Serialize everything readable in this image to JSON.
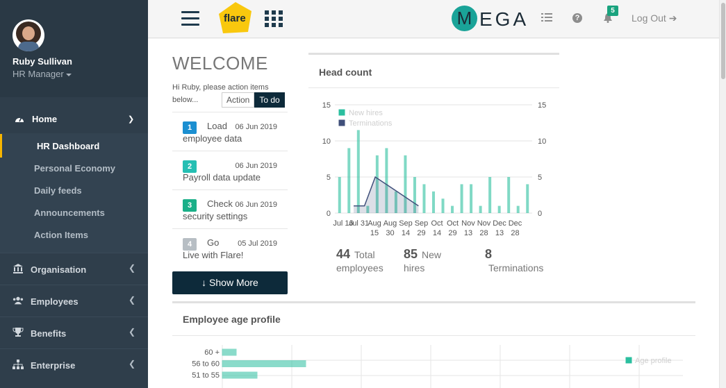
{
  "user": {
    "name": "Ruby Sullivan",
    "role": "HR Manager"
  },
  "nav": {
    "home": "Home",
    "home_items": [
      {
        "label": "HR Dashboard"
      },
      {
        "label": "Personal Economy"
      },
      {
        "label": "Daily feeds"
      },
      {
        "label": "Announcements"
      },
      {
        "label": "Action Items"
      }
    ],
    "groups": [
      {
        "label": "Organisation"
      },
      {
        "label": "Employees"
      },
      {
        "label": "Benefits"
      },
      {
        "label": "Enterprise"
      }
    ]
  },
  "topbar": {
    "brand_logo": "flare",
    "mega_logo_first": "M",
    "mega_logo_rest": "EGA",
    "notification_count": "5",
    "logout_label": "Log Out"
  },
  "welcome": {
    "title": "WELCOME",
    "message": "Hi Ruby, please action items below...",
    "toggle_action": "Action",
    "toggle_todo": "To do",
    "show_more": "Show More"
  },
  "todos": [
    {
      "num": "1",
      "title": "Load",
      "date": "06 Jun 2019",
      "sub": "employee data",
      "color": "#1b8fd1"
    },
    {
      "num": "2",
      "title": "",
      "date": "06 Jun 2019",
      "sub": "Payroll data update",
      "color": "#25bfb3"
    },
    {
      "num": "3",
      "title": "Check",
      "date": "06 Jun 2019",
      "sub": "security settings",
      "color": "#1aaf88"
    },
    {
      "num": "4",
      "title": "Go",
      "date": "05 Jul 2019",
      "sub": "Live with Flare!",
      "color": "#b7bec4"
    }
  ],
  "headcount": {
    "title": "Head count",
    "stats": [
      {
        "value": "44",
        "label1": "Total",
        "label2": "employees"
      },
      {
        "value": "85",
        "label1": "New",
        "label2": "hires"
      },
      {
        "value": "8",
        "label1": "",
        "label2": "Terminations"
      }
    ]
  },
  "age_profile": {
    "title": "Employee age profile"
  },
  "chart_data": [
    {
      "type": "bar",
      "legend": [
        "New hires",
        "Terminations"
      ],
      "x_ticks": [
        [
          "Jul 16",
          ""
        ],
        [
          "Jul 31",
          ""
        ],
        [
          "Aug",
          "15"
        ],
        [
          "Aug",
          "30"
        ],
        [
          "Sep",
          "14"
        ],
        [
          "Sep",
          "29"
        ],
        [
          "Oct",
          "14"
        ],
        [
          "Oct",
          "29"
        ],
        [
          "Nov",
          "13"
        ],
        [
          "Nov",
          "28"
        ],
        [
          "Dec",
          "13"
        ],
        [
          "Dec",
          "28"
        ]
      ],
      "ylim": [
        0,
        15
      ],
      "yticks": [
        0,
        5,
        10,
        15
      ],
      "series": [
        {
          "name": "New hires",
          "values": [
            5,
            9,
            11.5,
            1,
            8,
            9,
            3,
            8,
            5,
            4,
            3,
            2,
            1,
            4,
            4,
            1,
            5,
            1,
            5,
            1,
            4
          ]
        },
        {
          "name": "Terminations",
          "values": [
            1,
            1,
            5,
            4,
            3,
            2,
            1
          ]
        }
      ],
      "colors": {
        "new_hires": "#2bbf9f",
        "terminations": "#3f4f7a"
      }
    },
    {
      "type": "bar",
      "categories": [
        "60 +",
        "56 to 60",
        "51 to 55"
      ],
      "values": [
        1,
        6,
        2.5
      ],
      "legend": [
        "Age profile"
      ],
      "color": "#2bbf9f"
    }
  ]
}
